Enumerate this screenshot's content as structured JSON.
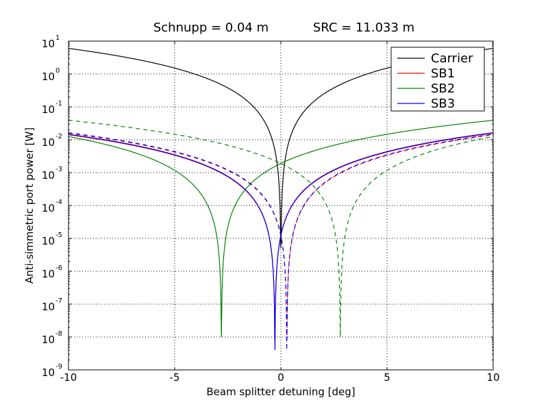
{
  "chart_data": {
    "type": "line",
    "title_left": "Schnupp = 0.04 m",
    "title_right": "SRC = 11.033 m",
    "xlabel": "Beam splitter detuning [deg]",
    "ylabel": "Anti-simmetric port power [W]",
    "xlim": [
      -10,
      10
    ],
    "ylim": [
      1e-09,
      10
    ],
    "yscale": "log",
    "grid": true,
    "legend_position": "top-right",
    "x_ticks": [
      -10,
      -5,
      0,
      5,
      10
    ],
    "x_tick_labels": [
      "-10",
      "-5",
      "0",
      "5",
      "10"
    ],
    "y_ticks": [
      1e-09,
      1e-08,
      1e-07,
      1e-06,
      1e-05,
      0.0001,
      0.001,
      0.01,
      0.1,
      1.0,
      10.0
    ],
    "y_tick_base": "10",
    "y_tick_exponents": [
      "-9",
      "-8",
      "-7",
      "-6",
      "-5",
      "-4",
      "-3",
      "-2",
      "-1",
      "0",
      "1"
    ],
    "series": [
      {
        "name": "Carrier",
        "color": "#000000",
        "dash": "solid",
        "model": "sin2",
        "amplitude": 6.0,
        "x0": 0.0,
        "floor": 5e-06
      },
      {
        "name": "SB1",
        "color": "#ff0000",
        "dash": "solid",
        "model": "sin2",
        "amplitude": 0.015,
        "x0": -0.28,
        "floor": 8e-09
      },
      {
        "name": "SB2",
        "color": "#008000",
        "dash": "solid",
        "model": "sin2",
        "amplitude": 0.024,
        "x0": -2.8,
        "floor": 1e-08
      },
      {
        "name": "SB3",
        "color": "#0000ff",
        "dash": "solid",
        "model": "sin2",
        "amplitude": 0.0155,
        "x0": -0.28,
        "floor": 4e-09
      },
      {
        "name": "",
        "color": "#ff0000",
        "dash": "dashed",
        "model": "sin2",
        "amplitude": 0.015,
        "x0": 0.28,
        "floor": 8e-09
      },
      {
        "name": "",
        "color": "#008000",
        "dash": "dashed",
        "model": "sin2",
        "amplitude": 0.024,
        "x0": 2.8,
        "floor": 1e-08
      },
      {
        "name": "",
        "color": "#0000ff",
        "dash": "dashed",
        "model": "sin2",
        "amplitude": 0.0155,
        "x0": 0.28,
        "floor": 4e-09
      }
    ]
  }
}
